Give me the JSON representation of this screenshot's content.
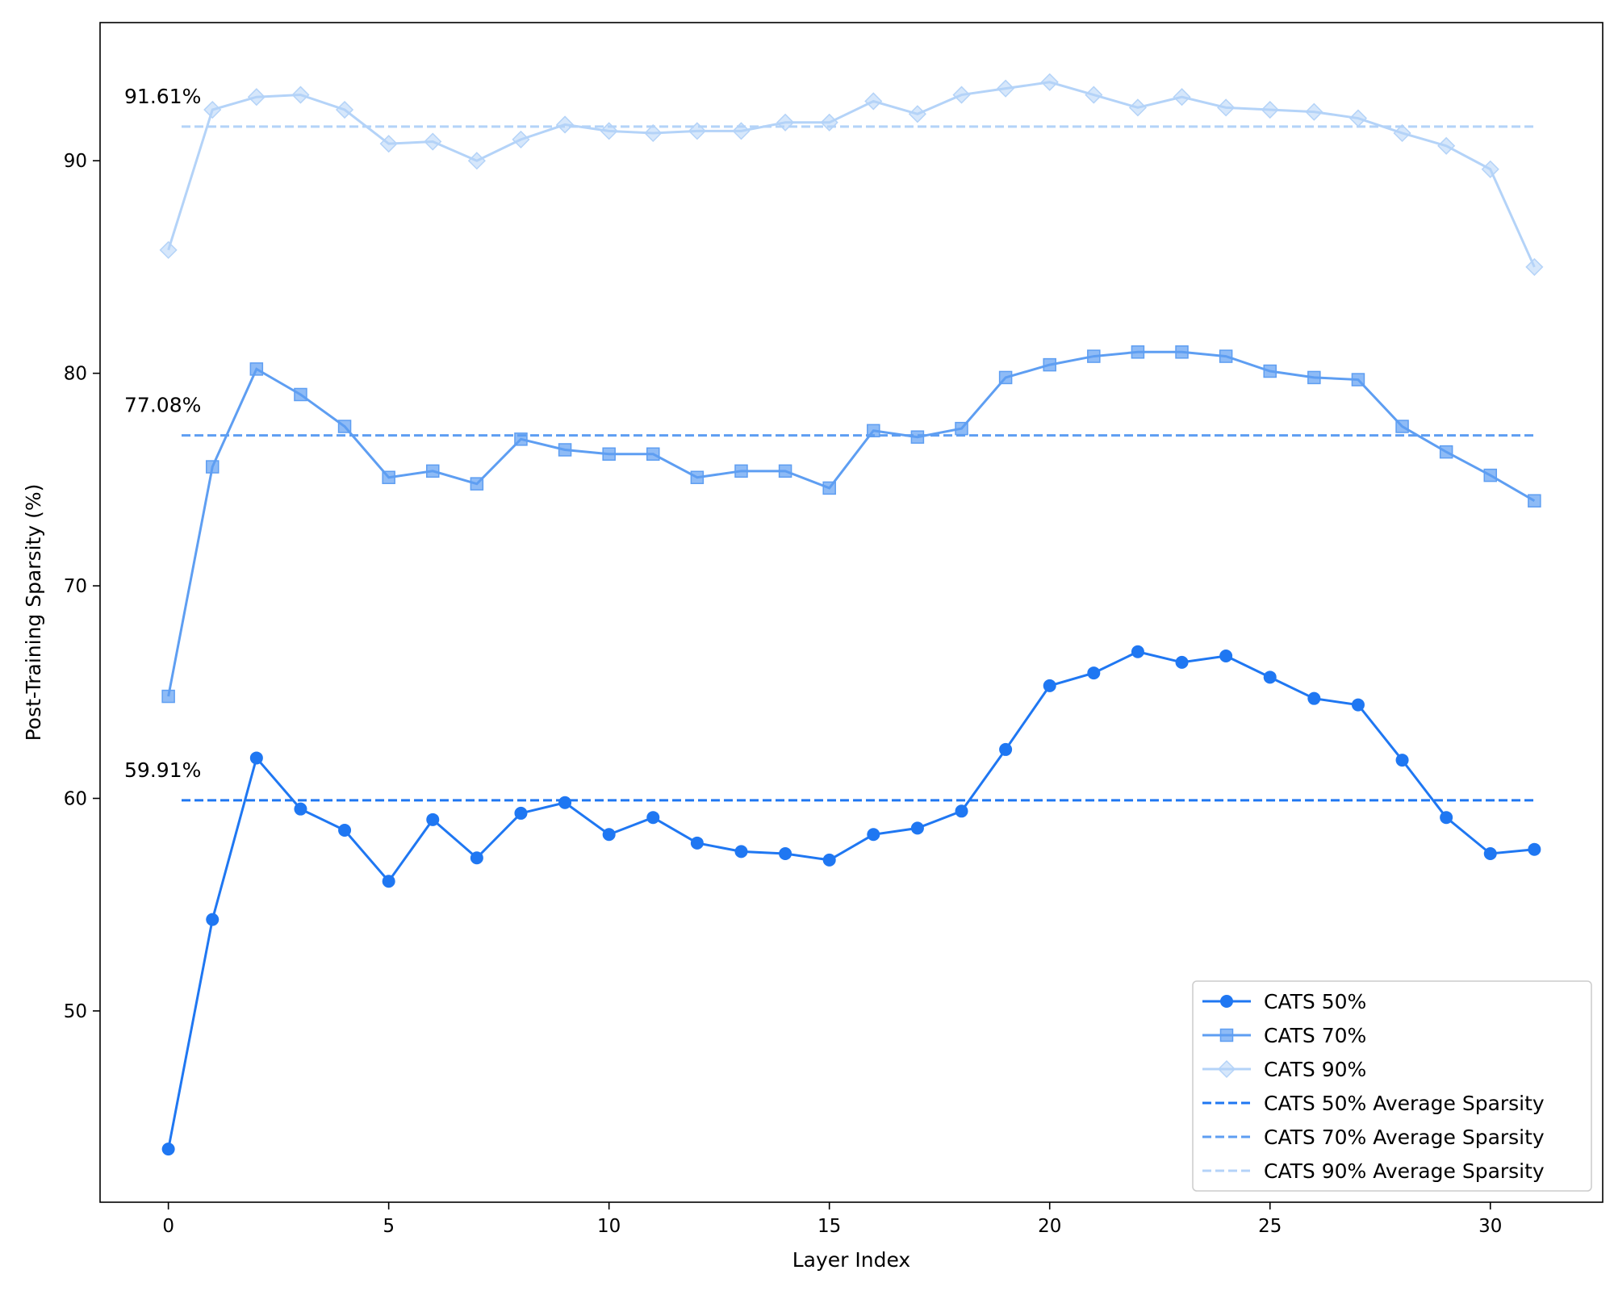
{
  "chart_data": {
    "type": "line",
    "title": "",
    "xlabel": "Layer Index",
    "ylabel": "Post-Training Sparsity (%)",
    "xlim": [
      -1.55,
      32.55
    ],
    "ylim": [
      41.0,
      96.5
    ],
    "xticks": [
      0,
      5,
      10,
      15,
      20,
      25,
      30
    ],
    "yticks": [
      50,
      60,
      70,
      80,
      90
    ],
    "grid": false,
    "legend_position": "lower right",
    "x": [
      0,
      1,
      2,
      3,
      4,
      5,
      6,
      7,
      8,
      9,
      10,
      11,
      12,
      13,
      14,
      15,
      16,
      17,
      18,
      19,
      20,
      21,
      22,
      23,
      24,
      25,
      26,
      27,
      28,
      29,
      30,
      31
    ],
    "series": [
      {
        "name": "CATS 50%",
        "color": "#1f77f2",
        "marker": "circle",
        "values": [
          43.5,
          54.3,
          61.9,
          59.5,
          58.5,
          56.1,
          59.0,
          57.2,
          59.3,
          59.8,
          58.3,
          59.1,
          57.9,
          57.5,
          57.4,
          57.1,
          58.3,
          58.6,
          59.4,
          62.3,
          65.3,
          65.9,
          66.9,
          66.4,
          66.7,
          65.7,
          64.7,
          64.4,
          61.8,
          59.1,
          57.4,
          57.6
        ]
      },
      {
        "name": "CATS 70%",
        "color": "#5e9ef2",
        "marker": "square",
        "values": [
          64.8,
          75.6,
          80.2,
          79.0,
          77.5,
          75.1,
          75.4,
          74.8,
          76.9,
          76.4,
          76.2,
          76.2,
          75.1,
          75.4,
          75.4,
          74.6,
          77.3,
          77.0,
          77.4,
          79.8,
          80.4,
          80.8,
          81.0,
          81.0,
          80.8,
          80.1,
          79.8,
          79.7,
          77.5,
          76.3,
          75.2,
          74.0
        ]
      },
      {
        "name": "CATS 90%",
        "color": "#b4d3f8",
        "marker": "diamond",
        "values": [
          85.8,
          92.4,
          93.0,
          93.1,
          92.4,
          90.8,
          90.9,
          90.0,
          91.0,
          91.7,
          91.4,
          91.3,
          91.4,
          91.4,
          91.8,
          91.8,
          92.8,
          92.2,
          93.1,
          93.4,
          93.7,
          93.1,
          92.5,
          93.0,
          92.5,
          92.4,
          92.3,
          92.0,
          91.3,
          90.7,
          89.6,
          85.0
        ]
      }
    ],
    "average_lines": [
      {
        "name": "CATS 50% Average Sparsity",
        "value": 59.91,
        "label": "59.91%",
        "color": "#1f77f2"
      },
      {
        "name": "CATS 70% Average Sparsity",
        "value": 77.08,
        "label": "77.08%",
        "color": "#5e9ef2"
      },
      {
        "name": "CATS 90% Average Sparsity",
        "value": 91.61,
        "label": "91.61%",
        "color": "#b4d3f8"
      }
    ]
  }
}
